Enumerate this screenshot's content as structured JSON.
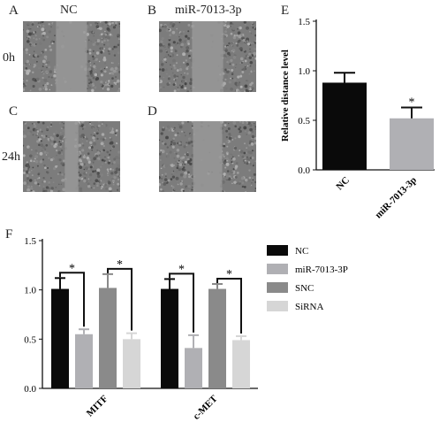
{
  "panels": {
    "a": "A",
    "b": "B",
    "c": "C",
    "d": "D",
    "e": "E",
    "f": "F"
  },
  "micrograph_headers": {
    "col1": "NC",
    "col2": "miR-7013-3p"
  },
  "micrograph_rows": {
    "row1": "0h",
    "row2": "24h"
  },
  "micrograph_images": {
    "nc_0h": {
      "gap_fraction": 0.32
    },
    "mir_0h": {
      "gap_fraction": 0.32
    },
    "nc_24h": {
      "gap_fraction": 0.14
    },
    "mir_24h": {
      "gap_fraction": 0.3
    }
  },
  "colors": {
    "black": "#0a0a0a",
    "light_gray": "#b0b0b4",
    "mid_gray": "#8a8a8a",
    "pale_gray": "#d6d6d6"
  },
  "chart_data": [
    {
      "type": "bar",
      "panel": "E",
      "categories": [
        "NC",
        "miR-7013-3p"
      ],
      "values": [
        0.88,
        0.52
      ],
      "errors": [
        0.1,
        0.11
      ],
      "colors": [
        "#0a0a0a",
        "#b0b0b4"
      ],
      "significance": [
        "",
        "*"
      ],
      "ylabel": "Relative distance level",
      "ylim": [
        0,
        1.5
      ],
      "yticks": [
        "0.0",
        "0.5",
        "1.0",
        "1.5"
      ]
    },
    {
      "type": "bar",
      "panel": "F",
      "categories": [
        "MITF",
        "c-MET"
      ],
      "series": [
        {
          "name": "NC",
          "values": [
            1.01,
            1.01
          ],
          "errors": [
            0.11,
            0.1
          ],
          "color": "#0a0a0a"
        },
        {
          "name": "miR-7013-3P",
          "values": [
            0.55,
            0.41
          ],
          "errors": [
            0.05,
            0.13
          ],
          "color": "#b0b0b4"
        },
        {
          "name": "SNC",
          "values": [
            1.02,
            1.01
          ],
          "errors": [
            0.14,
            0.05
          ],
          "color": "#8a8a8a"
        },
        {
          "name": "SiRNA",
          "values": [
            0.5,
            0.49
          ],
          "errors": [
            0.06,
            0.04
          ],
          "color": "#d6d6d6"
        }
      ],
      "significance_marker": "*",
      "ylim": [
        0,
        1.5
      ],
      "yticks": [
        "0.0",
        "0.5",
        "1.0",
        "1.5"
      ],
      "legend_position": "right"
    }
  ]
}
